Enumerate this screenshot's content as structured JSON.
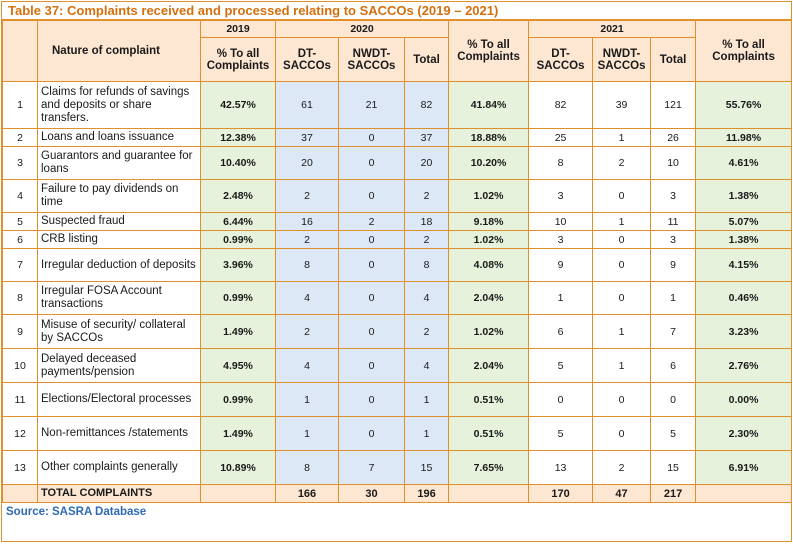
{
  "title": "Table 37: Complaints received and processed relating to SACCOs (2019 – 2021)",
  "header": {
    "y2019": "2019",
    "y2020": "2020",
    "y2021": "2021",
    "nature": "Nature of complaint",
    "pct_all_2019": "% To all Complaints",
    "dt_2020": "DT-SACCOs",
    "nwdt_2020": "NWDT-SACCOs",
    "total_2020": "Total",
    "pct_all_2020": "% To all Complaints",
    "dt_2021": "DT-SACCOs",
    "nwdt_2021": "NWDT-SACCOs",
    "total_2021": "Total",
    "pct_all_2021": "% To all Complaints"
  },
  "rows": [
    {
      "n": "1",
      "nature": "Claims for refunds of savings and deposits or share transfers.",
      "p19": "42.57%",
      "dt20": "61",
      "nw20": "21",
      "t20": "82",
      "p20": "41.84%",
      "dt21": "82",
      "nw21": "39",
      "t21": "121",
      "p21": "55.76%"
    },
    {
      "n": "2",
      "nature": "Loans and loans issuance",
      "p19": "12.38%",
      "dt20": "37",
      "nw20": "0",
      "t20": "37",
      "p20": "18.88%",
      "dt21": "25",
      "nw21": "1",
      "t21": "26",
      "p21": "11.98%"
    },
    {
      "n": "3",
      "nature": "Guarantors and guarantee for loans",
      "p19": "10.40%",
      "dt20": "20",
      "nw20": "0",
      "t20": "20",
      "p20": "10.20%",
      "dt21": "8",
      "nw21": "2",
      "t21": "10",
      "p21": "4.61%"
    },
    {
      "n": "4",
      "nature": "Failure to pay dividends on time",
      "p19": "2.48%",
      "dt20": "2",
      "nw20": "0",
      "t20": "2",
      "p20": "1.02%",
      "dt21": "3",
      "nw21": "0",
      "t21": "3",
      "p21": "1.38%"
    },
    {
      "n": "5",
      "nature": "Suspected fraud",
      "p19": "6.44%",
      "dt20": "16",
      "nw20": "2",
      "t20": "18",
      "p20": "9.18%",
      "dt21": "10",
      "nw21": "1",
      "t21": "11",
      "p21": "5.07%"
    },
    {
      "n": "6",
      "nature": "CRB listing",
      "p19": "0.99%",
      "dt20": "2",
      "nw20": "0",
      "t20": "2",
      "p20": "1.02%",
      "dt21": "3",
      "nw21": "0",
      "t21": "3",
      "p21": "1.38%"
    },
    {
      "n": "7",
      "nature": "Irregular deduction of deposits",
      "p19": "3.96%",
      "dt20": "8",
      "nw20": "0",
      "t20": "8",
      "p20": "4.08%",
      "dt21": "9",
      "nw21": "0",
      "t21": "9",
      "p21": "4.15%"
    },
    {
      "n": "8",
      "nature": "Irregular FOSA Account transactions",
      "p19": "0.99%",
      "dt20": "4",
      "nw20": "0",
      "t20": "4",
      "p20": "2.04%",
      "dt21": "1",
      "nw21": "0",
      "t21": "1",
      "p21": "0.46%"
    },
    {
      "n": "9",
      "nature": "Misuse of security/ collateral by SACCOs",
      "p19": "1.49%",
      "dt20": "2",
      "nw20": "0",
      "t20": "2",
      "p20": "1.02%",
      "dt21": "6",
      "nw21": "1",
      "t21": "7",
      "p21": "3.23%"
    },
    {
      "n": "10",
      "nature": "Delayed deceased payments/pension",
      "p19": "4.95%",
      "dt20": "4",
      "nw20": "0",
      "t20": "4",
      "p20": "2.04%",
      "dt21": "5",
      "nw21": "1",
      "t21": "6",
      "p21": "2.76%"
    },
    {
      "n": "11",
      "nature": "Elections/Electoral processes",
      "p19": "0.99%",
      "dt20": "1",
      "nw20": "0",
      "t20": "1",
      "p20": "0.51%",
      "dt21": "0",
      "nw21": "0",
      "t21": "0",
      "p21": "0.00%"
    },
    {
      "n": "12",
      "nature": "Non-remittances /statements",
      "p19": "1.49%",
      "dt20": "1",
      "nw20": "0",
      "t20": "1",
      "p20": "0.51%",
      "dt21": "5",
      "nw21": "0",
      "t21": "5",
      "p21": "2.30%"
    },
    {
      "n": "13",
      "nature": "Other complaints generally",
      "p19": "10.89%",
      "dt20": "8",
      "nw20": "7",
      "t20": "15",
      "p20": "7.65%",
      "dt21": "13",
      "nw21": "2",
      "t21": "15",
      "p21": "6.91%"
    }
  ],
  "totals": {
    "label": "TOTAL COMPLAINTS",
    "dt20": "166",
    "nw20": "30",
    "t20": "196",
    "dt21": "170",
    "nw21": "47",
    "t21": "217"
  },
  "source": "Source: SASRA Database"
}
